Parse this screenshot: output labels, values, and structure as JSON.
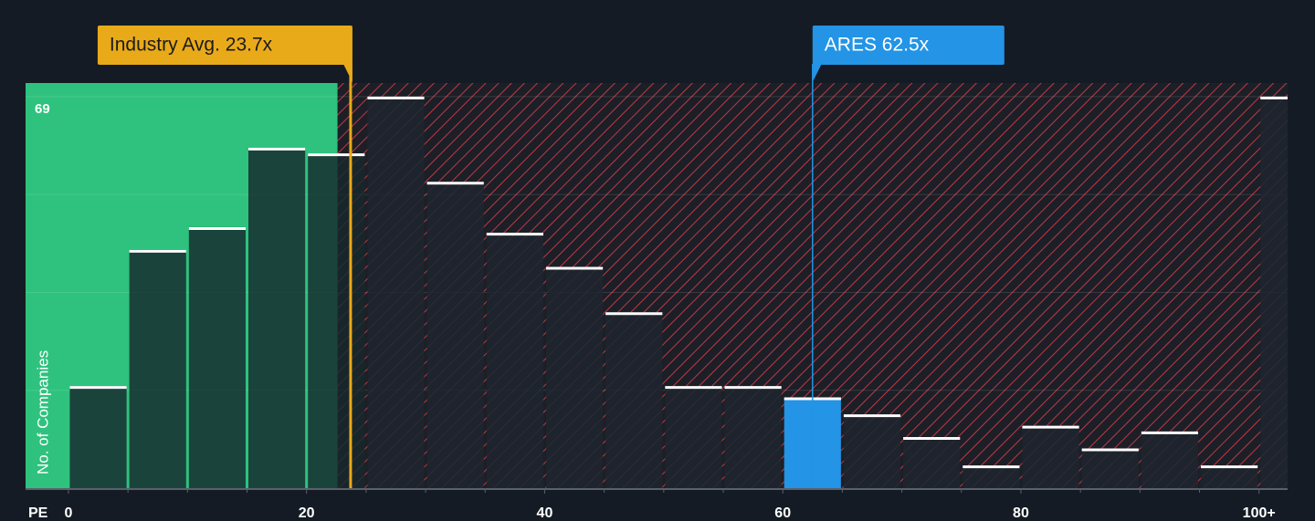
{
  "chart_data": {
    "type": "histogram",
    "x_label": "PE",
    "y_label": "No. of Companies",
    "bins": [
      0,
      5,
      10,
      15,
      20,
      25,
      30,
      35,
      40,
      45,
      50,
      55,
      60,
      65,
      70,
      75,
      80,
      85,
      90,
      95,
      100,
      105
    ],
    "counts": [
      18,
      42,
      46,
      60,
      59,
      69,
      54,
      45,
      39,
      31,
      18,
      18,
      16,
      13,
      9,
      4,
      11,
      7,
      10,
      4,
      69
    ],
    "color": "#1e252f",
    "highlight_color": "#2394e6",
    "highlight_bin": 12,
    "green_zone_color": "#2ec27e",
    "green_zone_xlim": [
      -3.6,
      22.6
    ],
    "xlim": [
      -3.6,
      102.4
    ],
    "ylim": [
      0,
      71.4
    ],
    "xticks": [
      0,
      20,
      40,
      60,
      80,
      {
        "value": 100,
        "label": "100+"
      }
    ],
    "yticks": [
      69
    ],
    "grid_lines": [
      17.25,
      34.5,
      51.75,
      69
    ],
    "annotations": [
      {
        "text": "Industry Avg. 23.7x",
        "x": 23.7,
        "color": "#e9aa1a"
      },
      {
        "text": "ARES 62.5x",
        "x": 62.5,
        "color": "#2394e6"
      }
    ]
  }
}
